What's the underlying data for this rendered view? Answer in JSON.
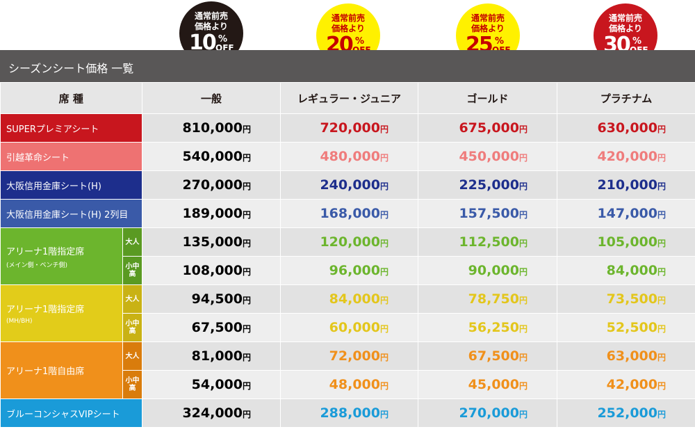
{
  "badges": [
    {
      "line1": "通常前売",
      "line2": "価格より",
      "pct": "10",
      "sym": "%",
      "off": "OFF"
    },
    {
      "line1": "通常前売",
      "line2": "価格より",
      "pct": "20",
      "sym": "%",
      "off": "OFF"
    },
    {
      "line1": "通常前売",
      "line2": "価格より",
      "pct": "25",
      "sym": "%",
      "off": "OFF"
    },
    {
      "line1": "通常前売",
      "line2": "価格より",
      "pct": "30",
      "sym": "%",
      "off": "OFF"
    }
  ],
  "title": "シーズンシート価格 一覧",
  "headers": [
    "席 種",
    "一般",
    "レギュラー・ジュニア",
    "ゴールド",
    "プラチナム"
  ],
  "yen": "円",
  "rows": {
    "super": {
      "label": "SUPERプレミアシート",
      "prices": [
        "810,000",
        "720,000",
        "675,000",
        "630,000"
      ]
    },
    "hikkoshi": {
      "label": "引越革命シート",
      "prices": [
        "540,000",
        "480,000",
        "450,000",
        "420,000"
      ]
    },
    "daishin": {
      "label": "大阪信用金庫シート(H)",
      "prices": [
        "270,000",
        "240,000",
        "225,000",
        "210,000"
      ]
    },
    "daishin2": {
      "label": "大阪信用金庫シート(H) 2列目",
      "prices": [
        "189,000",
        "168,000",
        "157,500",
        "147,000"
      ]
    },
    "arena1": {
      "label": "アリーナ1階指定席",
      "note": "(メイン側・ベンチ側)",
      "adult": "大人",
      "child": "小中高",
      "adult_prices": [
        "135,000",
        "120,000",
        "112,500",
        "105,000"
      ],
      "child_prices": [
        "108,000",
        "96,000",
        "90,000",
        "84,000"
      ]
    },
    "arena2": {
      "label": "アリーナ1階指定席",
      "note": "(MH/BH)",
      "adult": "大人",
      "child": "小中高",
      "adult_prices": [
        "94,500",
        "84,000",
        "78,750",
        "73,500"
      ],
      "child_prices": [
        "67,500",
        "60,000",
        "56,250",
        "52,500"
      ]
    },
    "arena3": {
      "label": "アリーナ1階自由席",
      "adult": "大人",
      "child": "小中高",
      "adult_prices": [
        "81,000",
        "72,000",
        "67,500",
        "63,000"
      ],
      "child_prices": [
        "54,000",
        "48,000",
        "45,000",
        "42,000"
      ]
    },
    "vip": {
      "label": "ブルーコンシャスVIPシート",
      "prices": [
        "324,000",
        "288,000",
        "270,000",
        "252,000"
      ]
    }
  },
  "colors": {
    "red": "#c8161e",
    "pink": "#ee7272",
    "navy": "#1d2e8c",
    "blue": "#3a5aa8",
    "green": "#6cb52d",
    "yellow": "#e2cc1a",
    "orange": "#f0901b",
    "sky": "#1a9bd8"
  }
}
